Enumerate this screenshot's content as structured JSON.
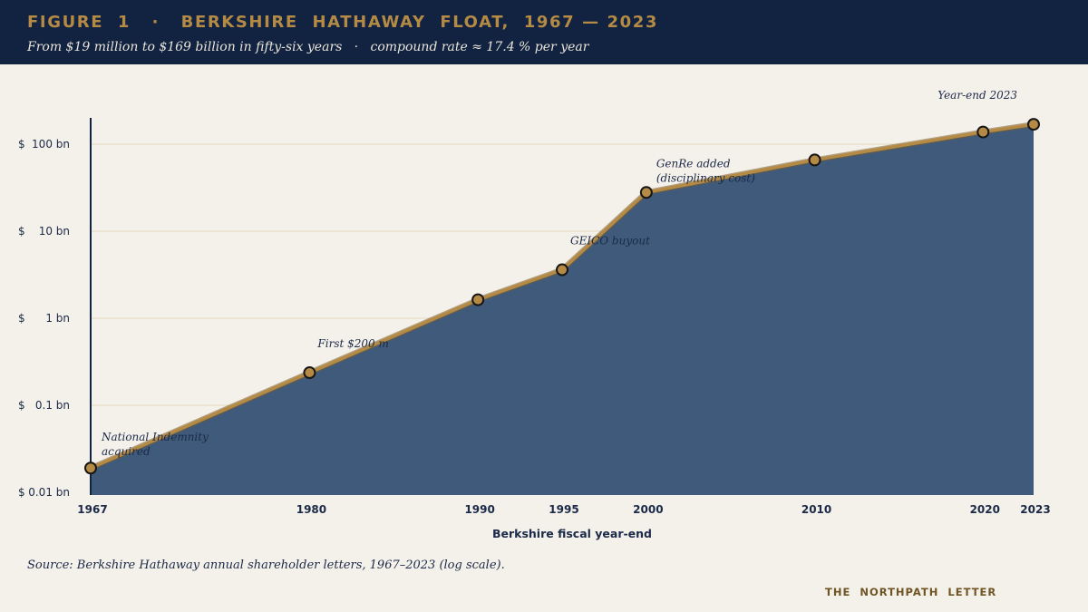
{
  "header": {
    "title": "FIGURE  1   ·   BERKSHIRE  HATHAWAY  FLOAT,  1967 — 2023",
    "subtitle": "From $19 million to $169 billion in fifty-six years   ·   compound rate ≈ 17.4 % per year"
  },
  "footer": {
    "source": "Source: Berkshire Hathaway annual shareholder letters, 1967–2023 (log scale).",
    "brand": "THE  NORTHPATH  LETTER"
  },
  "colors": {
    "header_bg": "#112340",
    "accent_gold": "#b48a45",
    "area_fill": "#3f5a7a",
    "background": "#f4f0ea",
    "gridline": "#e3d9bf",
    "text_navy": "#1b2a48"
  },
  "chart_data": {
    "type": "area",
    "title": "FIGURE  1   ·   BERKSHIRE  HATHAWAY  FLOAT,  1967 — 2023",
    "xlabel": "Berkshire fiscal year-end",
    "ylabel": "",
    "y_scale": "log",
    "ylim": [
      0.01,
      169
    ],
    "xlim": [
      1967,
      2023
    ],
    "grid": true,
    "x_ticks": [
      1967,
      1980,
      1990,
      1995,
      2000,
      2010,
      2020,
      2023
    ],
    "y_ticks": [
      {
        "value": 0.01,
        "currency": "$",
        "label": "0.01 bn"
      },
      {
        "value": 0.1,
        "currency": "$",
        "label": "0.1 bn"
      },
      {
        "value": 1,
        "currency": "$",
        "label": "1 bn"
      },
      {
        "value": 10,
        "currency": "$",
        "label": "10 bn"
      },
      {
        "value": 100,
        "currency": "$",
        "label": "100 bn"
      }
    ],
    "series": [
      {
        "x": [
          1967,
          1980,
          1990,
          1995,
          2000,
          2010,
          2020,
          2023
        ],
        "values": [
          0.019,
          0.237,
          1.632,
          3.607,
          27.871,
          65.832,
          138,
          169
        ]
      }
    ],
    "annotations": [
      {
        "x": 1967,
        "lines": [
          "National Indemnity",
          "acquired"
        ]
      },
      {
        "x": 1980,
        "lines": [
          "First $200 m"
        ]
      },
      {
        "x": 1995,
        "lines": [
          "GEICO buyout"
        ]
      },
      {
        "x": 2000,
        "lines": [
          "GenRe added",
          "(disciplinary cost)"
        ]
      },
      {
        "x": 2023,
        "lines": [
          "Year-end 2023"
        ]
      }
    ]
  }
}
